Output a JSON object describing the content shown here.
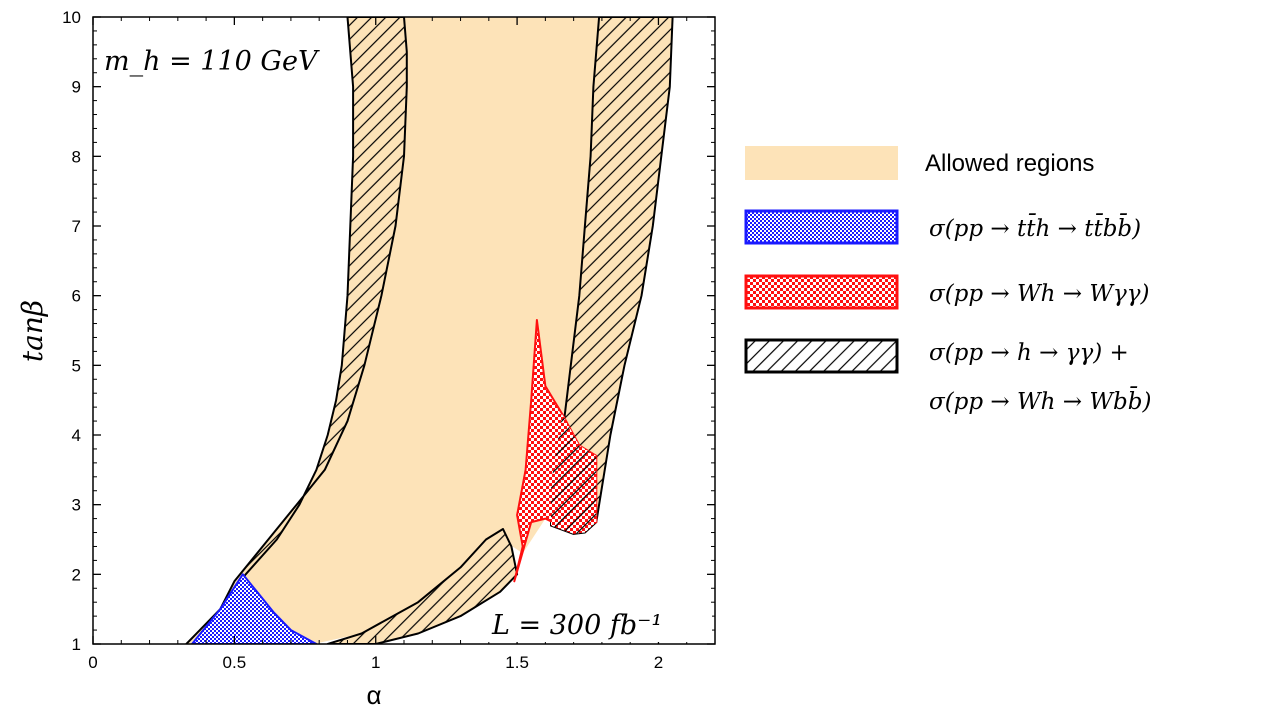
{
  "chart_data": {
    "type": "area",
    "title": "",
    "xlabel": "α",
    "ylabel": "tanβ",
    "xlim": [
      0,
      2.2
    ],
    "ylim": [
      1,
      10
    ],
    "x_ticks": [
      0,
      0.5,
      1,
      1.5,
      2
    ],
    "x_tick_labels": [
      "0",
      "0.5",
      "1",
      "1.5",
      "2"
    ],
    "y_ticks": [
      1,
      2,
      3,
      4,
      5,
      6,
      7,
      8,
      9,
      10
    ],
    "y_tick_labels": [
      "1",
      "2",
      "3",
      "4",
      "5",
      "6",
      "7",
      "8",
      "9",
      "10"
    ],
    "annotations": {
      "mass": "m_h = 110 GeV",
      "luminosity": "L = 300 fb⁻¹"
    },
    "colors": {
      "allowed": "#fde3b8",
      "blue": "#1a1aff",
      "red": "#ff1010",
      "black": "#000000"
    },
    "legend": [
      {
        "name": "Allowed regions",
        "style": "allowed"
      },
      {
        "name": "σ(pp → tt̄h → tt̄bb̄)",
        "style": "blue"
      },
      {
        "name": "σ(pp → Wh → Wγγ)",
        "style": "red"
      },
      {
        "name": "σ(pp → h → γγ) +",
        "line2": "σ(pp → Wh → Wbb̄)",
        "style": "hatch"
      }
    ],
    "regions": [
      {
        "name": "allowed-region-main",
        "style": "allowed",
        "outline": false,
        "points": [
          [
            0.33,
            1.0
          ],
          [
            0.45,
            1.5
          ],
          [
            0.54,
            2.0
          ],
          [
            0.65,
            2.5
          ],
          [
            0.73,
            3.0
          ],
          [
            0.79,
            3.5
          ],
          [
            0.83,
            4.0
          ],
          [
            0.86,
            4.5
          ],
          [
            0.88,
            5.0
          ],
          [
            0.9,
            6.0
          ],
          [
            0.91,
            7.0
          ],
          [
            0.92,
            8.0
          ],
          [
            0.92,
            9.0
          ],
          [
            0.92,
            10.0
          ],
          [
            2.05,
            10.0
          ],
          [
            2.04,
            9.0
          ],
          [
            2.01,
            8.0
          ],
          [
            1.98,
            7.0
          ],
          [
            1.94,
            6.0
          ],
          [
            1.88,
            5.0
          ],
          [
            1.83,
            4.0
          ],
          [
            1.79,
            3.0
          ],
          [
            1.78,
            2.75
          ],
          [
            1.7,
            2.6
          ],
          [
            1.6,
            2.8
          ],
          [
            1.52,
            2.3
          ],
          [
            1.43,
            2.55
          ],
          [
            1.35,
            2.1
          ],
          [
            1.15,
            1.5
          ],
          [
            0.95,
            1.15
          ],
          [
            0.78,
            1.0
          ]
        ]
      },
      {
        "name": "hatched-band-left",
        "style": "hatch",
        "outline": true,
        "points": [
          [
            0.33,
            1.0
          ],
          [
            0.45,
            1.5
          ],
          [
            0.54,
            2.0
          ],
          [
            0.65,
            2.5
          ],
          [
            0.73,
            3.0
          ],
          [
            0.79,
            3.5
          ],
          [
            0.83,
            4.0
          ],
          [
            0.86,
            4.5
          ],
          [
            0.88,
            5.0
          ],
          [
            0.9,
            6.0
          ],
          [
            0.91,
            7.0
          ],
          [
            0.92,
            8.0
          ],
          [
            0.92,
            9.0
          ],
          [
            0.9,
            10.0
          ],
          [
            1.1,
            10.0
          ],
          [
            1.11,
            9.5
          ],
          [
            1.11,
            9.0
          ],
          [
            1.1,
            8.0
          ],
          [
            1.07,
            7.0
          ],
          [
            1.02,
            6.0
          ],
          [
            0.96,
            5.0
          ],
          [
            0.9,
            4.2
          ],
          [
            0.82,
            3.5
          ],
          [
            0.72,
            3.0
          ],
          [
            0.6,
            2.4
          ],
          [
            0.5,
            1.9
          ],
          [
            0.45,
            1.5
          ],
          [
            0.33,
            1.0
          ]
        ]
      },
      {
        "name": "hatched-band-right",
        "style": "hatch",
        "outline": true,
        "points": [
          [
            1.79,
            10.0
          ],
          [
            2.05,
            10.0
          ],
          [
            2.04,
            9.0
          ],
          [
            2.01,
            8.0
          ],
          [
            1.98,
            7.0
          ],
          [
            1.94,
            6.0
          ],
          [
            1.88,
            5.0
          ],
          [
            1.83,
            4.0
          ],
          [
            1.79,
            3.0
          ],
          [
            1.78,
            2.75
          ],
          [
            1.74,
            2.6
          ],
          [
            1.7,
            2.58
          ],
          [
            1.62,
            2.7
          ],
          [
            1.62,
            3.3
          ],
          [
            1.66,
            4.0
          ],
          [
            1.69,
            5.0
          ],
          [
            1.72,
            6.0
          ],
          [
            1.74,
            7.0
          ],
          [
            1.76,
            8.0
          ],
          [
            1.77,
            9.0
          ],
          [
            1.79,
            10.0
          ]
        ]
      },
      {
        "name": "hatched-region-bottom",
        "style": "hatch",
        "outline": true,
        "points": [
          [
            0.83,
            1.0
          ],
          [
            0.95,
            1.15
          ],
          [
            1.15,
            1.6
          ],
          [
            1.3,
            2.1
          ],
          [
            1.39,
            2.5
          ],
          [
            1.45,
            2.65
          ],
          [
            1.48,
            2.4
          ],
          [
            1.5,
            2.0
          ],
          [
            1.44,
            1.75
          ],
          [
            1.3,
            1.4
          ],
          [
            1.15,
            1.15
          ],
          [
            1.0,
            1.0
          ]
        ]
      },
      {
        "name": "blue-region",
        "style": "blue",
        "outline": true,
        "points": [
          [
            0.35,
            1.0
          ],
          [
            0.45,
            1.5
          ],
          [
            0.53,
            2.0
          ],
          [
            0.58,
            1.75
          ],
          [
            0.64,
            1.45
          ],
          [
            0.7,
            1.2
          ],
          [
            0.79,
            1.0
          ]
        ]
      },
      {
        "name": "red-region",
        "style": "red",
        "outline": true,
        "points": [
          [
            1.49,
            1.9
          ],
          [
            1.52,
            2.4
          ],
          [
            1.5,
            2.85
          ],
          [
            1.53,
            3.5
          ],
          [
            1.55,
            4.5
          ],
          [
            1.57,
            5.65
          ],
          [
            1.6,
            4.7
          ],
          [
            1.66,
            4.3
          ],
          [
            1.72,
            3.85
          ],
          [
            1.78,
            3.7
          ],
          [
            1.78,
            2.75
          ],
          [
            1.7,
            2.6
          ],
          [
            1.6,
            2.8
          ],
          [
            1.55,
            2.75
          ],
          [
            1.49,
            1.9
          ]
        ]
      },
      {
        "name": "red-black-overlap-region",
        "style": "overlap",
        "outline": false,
        "points": [
          [
            1.62,
            2.7
          ],
          [
            1.62,
            3.3
          ],
          [
            1.66,
            4.3
          ],
          [
            1.72,
            3.85
          ],
          [
            1.78,
            3.7
          ],
          [
            1.78,
            2.75
          ],
          [
            1.74,
            2.6
          ],
          [
            1.7,
            2.58
          ],
          [
            1.62,
            2.7
          ]
        ]
      }
    ]
  }
}
